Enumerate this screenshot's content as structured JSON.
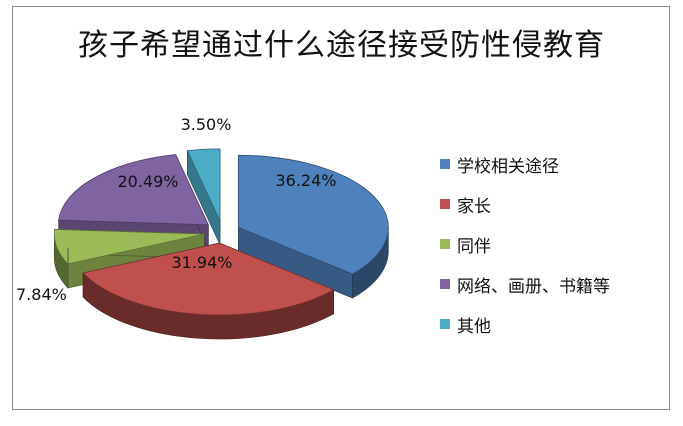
{
  "chart_data": {
    "type": "pie",
    "title": "孩子希望通过什么途径接受防性侵教育",
    "style": "3d-exploded",
    "legend_position": "right",
    "slices": [
      {
        "name": "学校相关途径",
        "value": 36.24,
        "label": "36.24%",
        "color": "#4F81BD"
      },
      {
        "name": "家长",
        "value": 31.94,
        "label": "31.94%",
        "color": "#C0504D"
      },
      {
        "name": "同伴",
        "value": 7.84,
        "label": "7.84%",
        "color": "#9BBB59"
      },
      {
        "name": "网络、画册、书籍等",
        "value": 20.49,
        "label": "20.49%",
        "color": "#8064A2"
      },
      {
        "name": "其他",
        "value": 3.5,
        "label": "3.50%",
        "color": "#4BACC6"
      }
    ]
  }
}
